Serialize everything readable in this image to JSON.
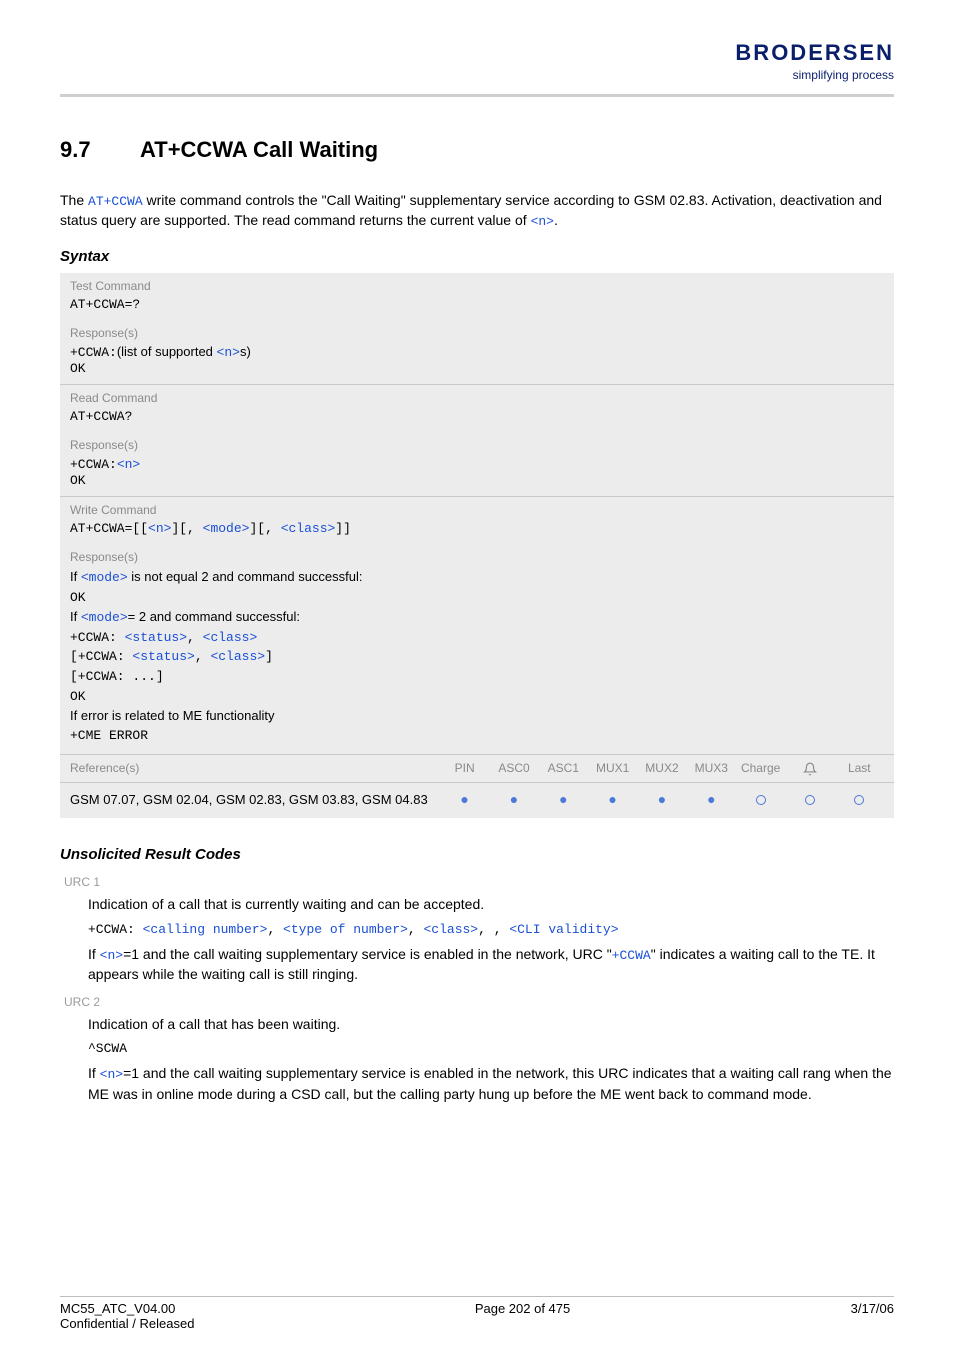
{
  "header": {
    "logo_text": "BRODERSEN",
    "tagline": "simplifying process"
  },
  "section": {
    "number": "9.7",
    "title": "AT+CCWA   Call Waiting"
  },
  "intro": {
    "prefix": "The ",
    "cmd": "AT+CCWA",
    "mid": " write command controls the \"Call Waiting\" supplementary service according to GSM 02.83. Activation, deactivation and status query are supported. The read command returns the current value of ",
    "suffix_param": "<n>",
    "end": "."
  },
  "syntax_label": "Syntax",
  "boxes": {
    "test_label": "Test Command",
    "test_cmd": "AT+CCWA=?",
    "resp_label": "Response(s)",
    "test_resp_prefix": "+CCWA:",
    "test_resp_text": "(list of supported ",
    "test_resp_param": "<n>",
    "test_resp_suffix": "s)",
    "ok": "OK",
    "read_label": "Read Command",
    "read_cmd": "AT+CCWA?",
    "read_resp_prefix": "+CCWA:",
    "read_resp_param": "<n>",
    "write_label": "Write Command",
    "write_cmd_prefix": "AT+CCWA=",
    "write_cmd_b1": "[[",
    "write_p_n": "<n>",
    "write_cmd_b2": "][, ",
    "write_p_mode": "<mode>",
    "write_cmd_b3": "][, ",
    "write_p_class": "<class>",
    "write_cmd_b4": "]]",
    "if1_pre": "If ",
    "if1_param": "<mode>",
    "if1_post": " is not equal 2 and command successful:",
    "if2_pre": "If ",
    "if2_param": "<mode>",
    "if2_post": "= 2 and command successful:",
    "line_ccwa": "+CCWA: ",
    "p_status": "<status>",
    "comma": ", ",
    "p_class": "<class>",
    "brk_open": "[",
    "brk_close": "]",
    "dots": "[+CCWA: ...]",
    "err_line": "If error is related to ME functionality",
    "cme": "+CME ERROR",
    "ref_label": "Reference(s)",
    "ref_text": "GSM 07.07, GSM 02.04, GSM 02.83, GSM 03.83, GSM 04.83",
    "cols": [
      "PIN",
      "ASC0",
      "ASC1",
      "MUX1",
      "MUX2",
      "MUX3",
      "Charge",
      "",
      "Last"
    ],
    "dots_filled": [
      true,
      true,
      true,
      true,
      true,
      true,
      false,
      false,
      false
    ]
  },
  "urc": {
    "heading": "Unsolicited Result Codes",
    "u1_label": "URC 1",
    "u1_line1": "Indication of a call that is currently waiting and can be accepted.",
    "u1_code_pre": "+CCWA: ",
    "u1_p1": "<calling number>",
    "u1_p2": "<type of number>",
    "u1_p3": "<class>",
    "u1_p4": "<CLI validity>",
    "u1_body_pre": "If ",
    "u1_body_n": "<n>",
    "u1_body_mid": "=1 and the call waiting supplementary service is enabled in the network, URC \"",
    "u1_body_cmd": "+CCWA",
    "u1_body_post": "\" indicates a waiting call to the TE. It appears while the waiting call is still ringing.",
    "u2_label": "URC 2",
    "u2_line1": "Indication of a call that has been waiting.",
    "u2_code": "^SCWA",
    "u2_body_pre": "If ",
    "u2_body_n": "<n>",
    "u2_body_post": "=1 and the call waiting supplementary service is enabled in the network, this URC indicates that a waiting call rang when the ME was in online mode during a CSD call, but the calling party hung up before the ME went back to command mode."
  },
  "footer": {
    "left1": "MC55_ATC_V04.00",
    "left2": "Confidential / Released",
    "center": "Page 202 of 475",
    "right": "3/17/06"
  },
  "colors": {
    "blue": "#1a4fd6",
    "dot": "#4b79d8"
  }
}
